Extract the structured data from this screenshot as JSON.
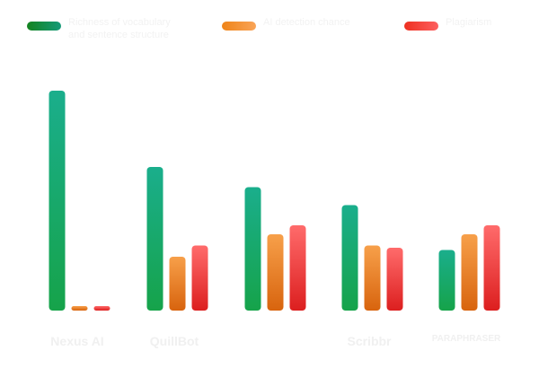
{
  "chart_data": {
    "type": "bar",
    "categories": [
      "Nexus AI",
      "QuillBot",
      "",
      "Scribbr",
      "PARAPHRASER"
    ],
    "series": [
      {
        "name": "Richness of vocabulary and sentence structure",
        "values": [
          98,
          64,
          55,
          47,
          27
        ],
        "color": [
          "#16a34a",
          "#1aae8c"
        ]
      },
      {
        "name": "AI detection chance",
        "values": [
          2,
          24,
          34,
          29,
          34
        ],
        "color": [
          "#f7a04a",
          "#d8640e"
        ]
      },
      {
        "name": "Plagiarism",
        "values": [
          2,
          29,
          38,
          28,
          38
        ],
        "color": [
          "#ff6b6b",
          "#dc1f1f"
        ]
      }
    ],
    "ylim": [
      0,
      100
    ],
    "grid": false,
    "legend": "top"
  }
}
